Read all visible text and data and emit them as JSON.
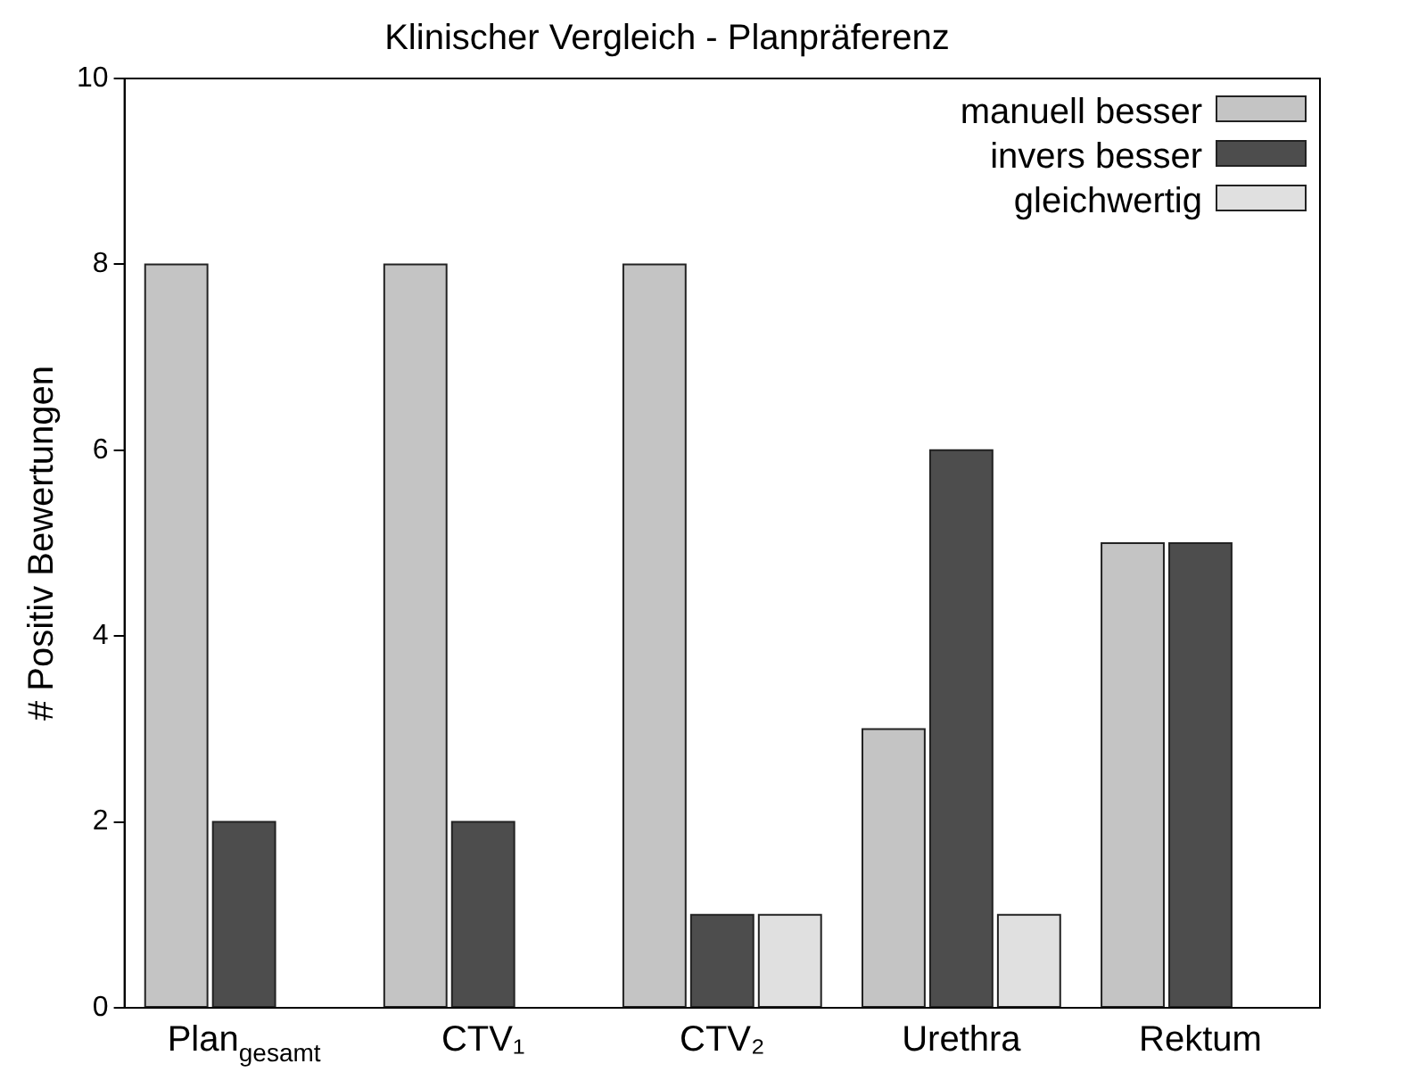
{
  "chart_data": {
    "type": "bar",
    "title": "Klinischer Vergleich - Planpräferenz",
    "ylabel": "# Positiv Bewertungen",
    "categories": [
      "Plan$_{gesamt}$",
      "CTV₁",
      "CTV₂",
      "Urethra",
      "Rektum"
    ],
    "series": [
      {
        "name": "manuell besser",
        "color": "#c4c4c4",
        "values": [
          8,
          8,
          8,
          3,
          5
        ]
      },
      {
        "name": "invers besser",
        "color": "#4d4d4d",
        "values": [
          2,
          2,
          1,
          6,
          5
        ]
      },
      {
        "name": "gleichwertig",
        "color": "#e0e0e0",
        "values": [
          0,
          0,
          1,
          1,
          0
        ]
      }
    ],
    "ylim": [
      0,
      10
    ],
    "yticks": [
      0,
      2,
      4,
      6,
      8,
      10
    ],
    "grid": false,
    "legend": "top right"
  }
}
